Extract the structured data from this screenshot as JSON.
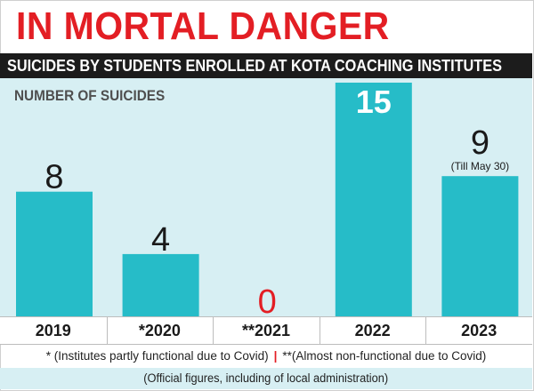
{
  "title": "IN MORTAL DANGER",
  "subtitle": "SUICIDES BY STUDENTS ENROLLED AT KOTA COACHING INSTITUTES",
  "colors": {
    "title": "#e31e24",
    "bar": "#26bcc8",
    "panel": "#d7eff3",
    "subtitle_bg": "#1c1c1c"
  },
  "chart_data": {
    "type": "bar",
    "ylabel": "NUMBER OF SUICIDES",
    "categories": [
      "2019",
      "*2020",
      "**2021",
      "2022",
      "2023"
    ],
    "values": [
      8,
      4,
      0,
      15,
      9
    ],
    "ylim": [
      0,
      15
    ],
    "grid": false,
    "annotations": [
      {
        "category": "2023",
        "text": "(Till May 30)"
      }
    ],
    "highlight": {
      "category": "2022",
      "label_inside_bar": true
    }
  },
  "notes": {
    "note1": "* (Institutes partly functional due to Covid)",
    "separator": "|",
    "note2": "**(Almost non-functional due to Covid)"
  },
  "source": "(Official figures, including of local administration)"
}
